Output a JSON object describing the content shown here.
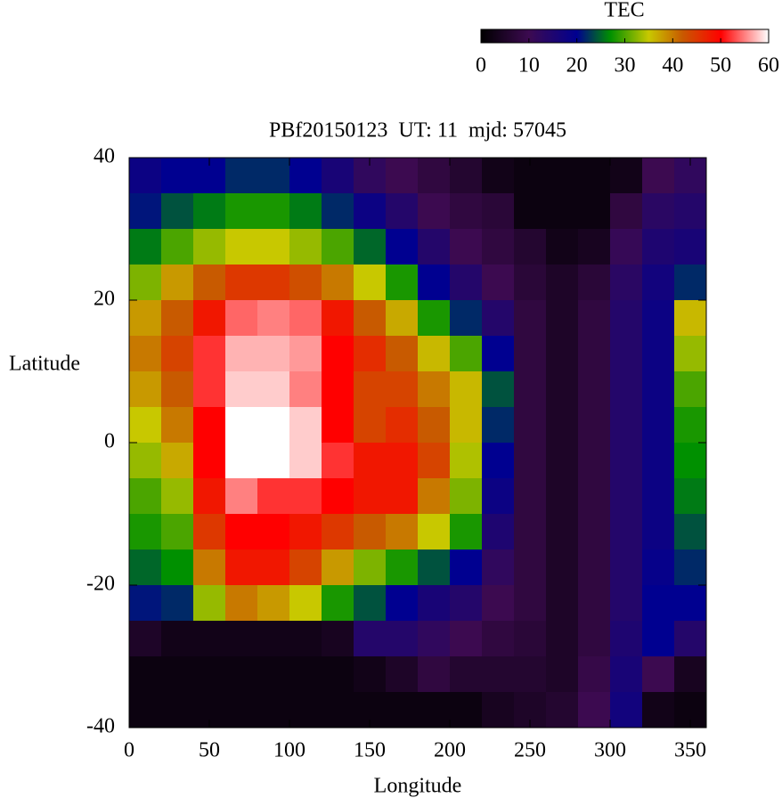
{
  "chart_data": {
    "type": "heatmap",
    "title": "PBf20150123  UT: 11  mjd: 57045",
    "xlabel": "Longitude",
    "ylabel": "Latitude",
    "colorbar_label": "TEC",
    "xlim": [
      0,
      360
    ],
    "xticks": [
      0,
      50,
      100,
      150,
      200,
      250,
      300,
      350
    ],
    "ylim": [
      -40,
      40
    ],
    "yticks": [
      -40,
      -20,
      0,
      20,
      40
    ],
    "zlim": [
      0,
      60
    ],
    "zticks": [
      0,
      10,
      20,
      30,
      40,
      50,
      60
    ],
    "colormap": [
      {
        "value": 0,
        "color": "#000000"
      },
      {
        "value": 10,
        "color": "#3c0a50"
      },
      {
        "value": 20,
        "color": "#000090"
      },
      {
        "value": 27,
        "color": "#009000"
      },
      {
        "value": 35,
        "color": "#c8c800"
      },
      {
        "value": 42,
        "color": "#c85a00"
      },
      {
        "value": 50,
        "color": "#ff0000"
      },
      {
        "value": 60,
        "color": "#ffffff"
      }
    ],
    "x": [
      10,
      30,
      50,
      70,
      90,
      110,
      130,
      150,
      170,
      190,
      210,
      230,
      250,
      270,
      290,
      310,
      330,
      350
    ],
    "y": [
      37.5,
      32.5,
      27.5,
      22.5,
      17.5,
      12.5,
      7.5,
      2.5,
      -2.5,
      -7.5,
      -12.5,
      -17.5,
      -22.5,
      -27.5,
      -32.5,
      -37.5
    ],
    "z": [
      [
        18,
        20,
        20,
        22,
        22,
        20,
        16,
        12,
        10,
        8,
        6,
        3,
        2,
        2,
        2,
        3,
        10,
        12
      ],
      [
        21,
        24,
        26,
        28,
        28,
        26,
        22,
        18,
        14,
        10,
        8,
        7,
        2,
        2,
        2,
        8,
        13,
        14
      ],
      [
        26,
        30,
        33,
        35,
        35,
        33,
        30,
        25,
        20,
        14,
        10,
        8,
        6,
        3,
        4,
        11,
        15,
        16
      ],
      [
        32,
        38,
        42,
        45,
        45,
        43,
        40,
        35,
        28,
        20,
        14,
        10,
        7,
        5,
        7,
        13,
        17,
        22
      ],
      [
        38,
        42,
        48,
        54,
        55,
        54,
        48,
        42,
        37,
        28,
        22,
        14,
        8,
        5,
        8,
        14,
        18,
        36
      ],
      [
        40,
        44,
        52,
        57,
        57,
        56,
        50,
        46,
        42,
        36,
        30,
        20,
        8,
        5,
        8,
        14,
        18,
        33
      ],
      [
        38,
        42,
        52,
        58,
        58,
        55,
        50,
        44,
        44,
        40,
        36,
        24,
        8,
        5,
        8,
        14,
        18,
        30
      ],
      [
        35,
        40,
        50,
        60,
        60,
        58,
        50,
        44,
        46,
        42,
        36,
        22,
        8,
        5,
        8,
        14,
        18,
        28
      ],
      [
        33,
        37,
        50,
        60,
        60,
        58,
        52,
        48,
        48,
        44,
        34,
        20,
        8,
        5,
        8,
        14,
        18,
        27
      ],
      [
        30,
        33,
        48,
        55,
        52,
        52,
        50,
        48,
        48,
        40,
        32,
        18,
        8,
        5,
        8,
        14,
        18,
        26
      ],
      [
        28,
        30,
        45,
        50,
        50,
        48,
        45,
        42,
        40,
        35,
        28,
        15,
        8,
        5,
        8,
        14,
        18,
        24
      ],
      [
        25,
        27,
        40,
        48,
        48,
        44,
        38,
        32,
        28,
        24,
        20,
        12,
        8,
        5,
        8,
        14,
        19,
        22
      ],
      [
        21,
        22,
        33,
        40,
        38,
        35,
        28,
        24,
        20,
        16,
        14,
        10,
        8,
        5,
        8,
        14,
        20,
        20
      ],
      [
        5,
        3,
        3,
        3,
        3,
        3,
        4,
        14,
        14,
        12,
        10,
        8,
        7,
        5,
        8,
        15,
        20,
        14
      ],
      [
        2,
        2,
        2,
        2,
        2,
        2,
        2,
        3,
        5,
        8,
        6,
        6,
        6,
        5,
        9,
        16,
        10,
        4
      ],
      [
        2,
        2,
        2,
        2,
        2,
        2,
        2,
        2,
        2,
        2,
        2,
        4,
        5,
        6,
        10,
        17,
        3,
        2
      ]
    ]
  }
}
